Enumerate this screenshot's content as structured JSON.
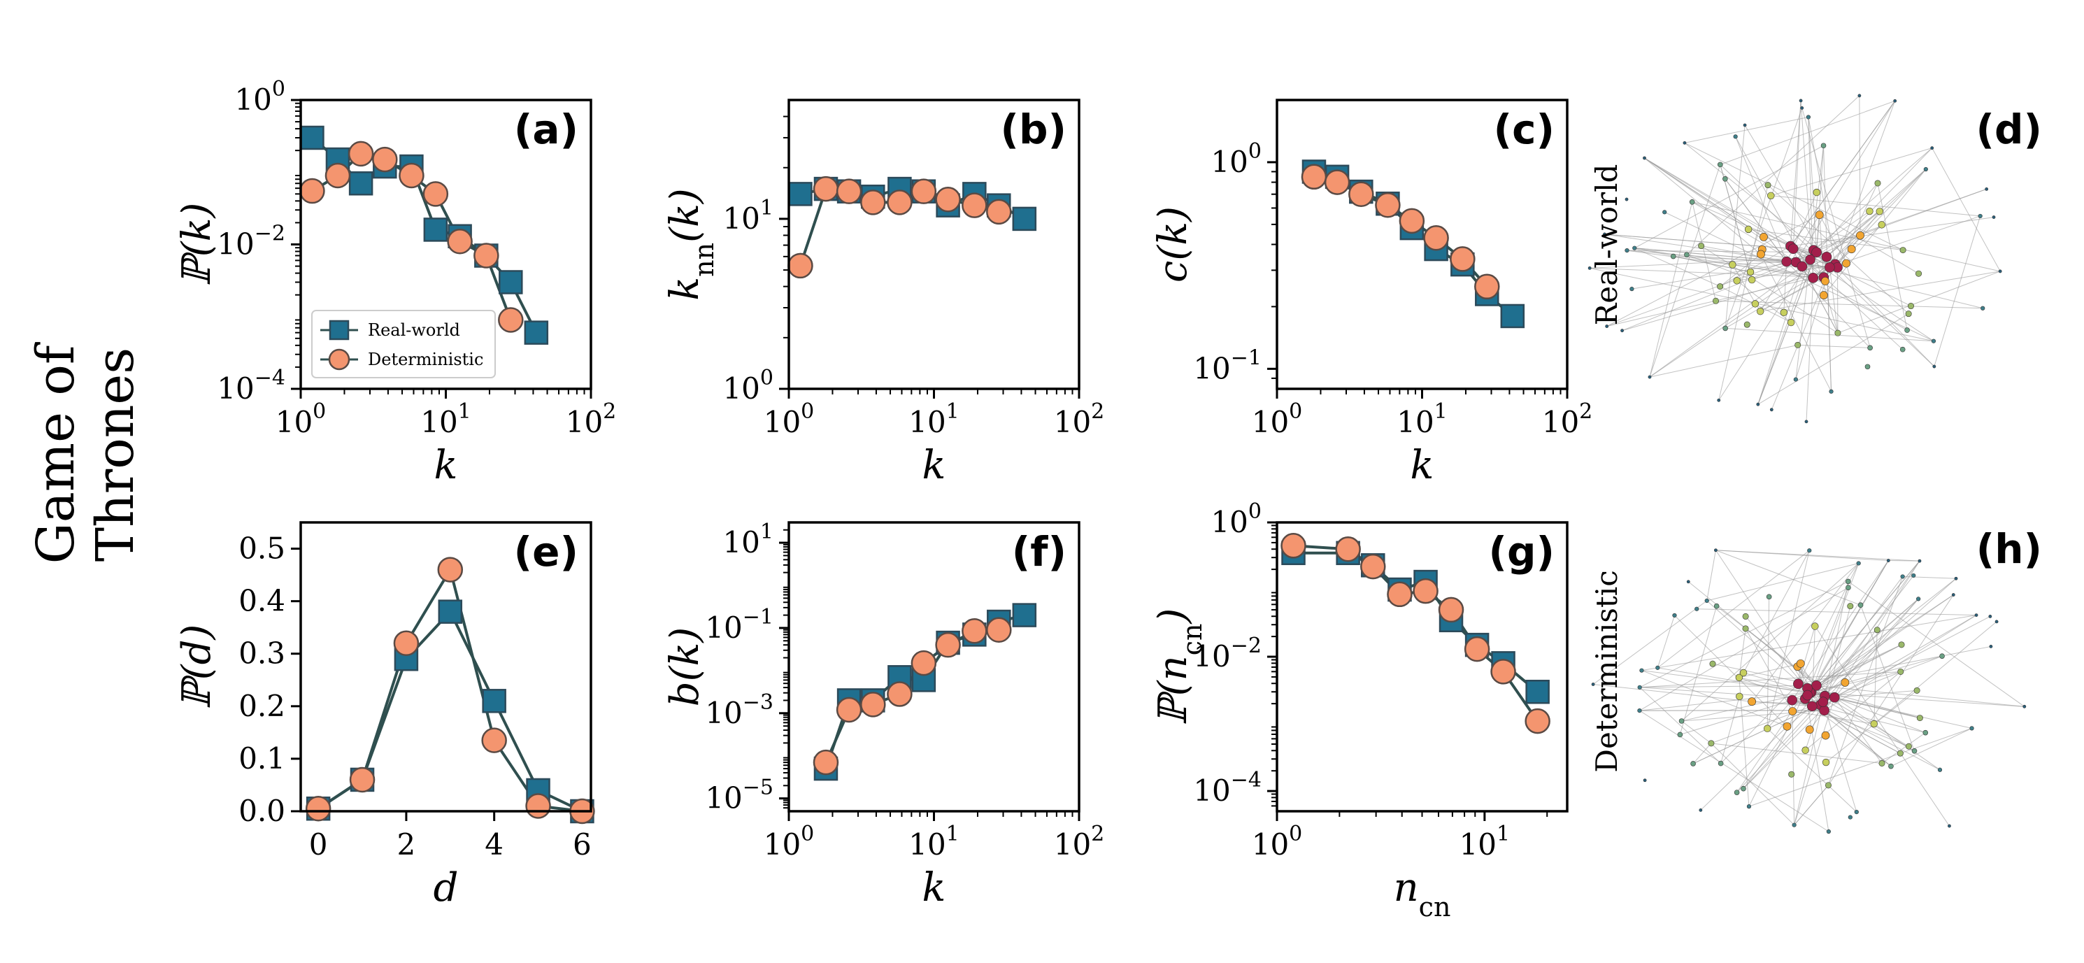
{
  "figure": {
    "row_label_line1": "Game of",
    "row_label_line2": "Thrones",
    "legend": {
      "real": "Real-world",
      "det": "Deterministic"
    },
    "colors": {
      "real": "#1f6f8f",
      "real_edge": "#2c4a5a",
      "det": "#f4956f",
      "det_edge": "#5a4a44",
      "line": "#2f4f4f"
    }
  },
  "chart_data": [
    {
      "id": "a",
      "type": "line",
      "panel_label": "(a)",
      "xscale": "log",
      "yscale": "log",
      "xlim": [
        1,
        100
      ],
      "ylim": [
        0.0001,
        1
      ],
      "xticks": [
        {
          "v": 1,
          "base": "10",
          "exp": "0"
        },
        {
          "v": 10,
          "base": "10",
          "exp": "1"
        },
        {
          "v": 100,
          "base": "10",
          "exp": "2"
        }
      ],
      "yticks": [
        {
          "v": 0.0001,
          "base": "10",
          "exp": "−4"
        },
        {
          "v": 0.01,
          "base": "10",
          "exp": "−2"
        },
        {
          "v": 1,
          "base": "10",
          "exp": "0"
        }
      ],
      "xlabel": "k",
      "ylabel": "ℙ(k)",
      "legend": true,
      "series": [
        {
          "name": "Real-world",
          "x": [
            1.2,
            1.8,
            2.6,
            3.8,
            5.8,
            8.5,
            12.5,
            19,
            28,
            42
          ],
          "y": [
            0.3,
            0.15,
            0.07,
            0.12,
            0.12,
            0.016,
            0.013,
            0.007,
            0.003,
            0.0006
          ]
        },
        {
          "name": "Deterministic",
          "x": [
            1.2,
            1.8,
            2.6,
            3.8,
            5.8,
            8.5,
            12.5,
            19,
            28
          ],
          "y": [
            0.055,
            0.09,
            0.18,
            0.15,
            0.09,
            0.05,
            0.011,
            0.007,
            0.0009
          ]
        }
      ]
    },
    {
      "id": "b",
      "type": "line",
      "panel_label": "(b)",
      "xscale": "log",
      "yscale": "log",
      "xlim": [
        1,
        100
      ],
      "ylim": [
        1,
        50
      ],
      "xticks": [
        {
          "v": 1,
          "base": "10",
          "exp": "0"
        },
        {
          "v": 10,
          "base": "10",
          "exp": "1"
        },
        {
          "v": 100,
          "base": "10",
          "exp": "2"
        }
      ],
      "yticks": [
        {
          "v": 1,
          "base": "10",
          "exp": "0"
        },
        {
          "v": 10,
          "base": "10",
          "exp": "1"
        }
      ],
      "xlabel": "k",
      "ylabel": "k_nn(k)",
      "series": [
        {
          "name": "Real-world",
          "x": [
            1.2,
            1.8,
            2.6,
            3.8,
            5.8,
            8.5,
            12.5,
            19,
            28,
            42
          ],
          "y": [
            14,
            15,
            14.5,
            13.5,
            15,
            14.5,
            12,
            14,
            12,
            10
          ]
        },
        {
          "name": "Deterministic",
          "x": [
            1.2,
            1.8,
            2.6,
            3.8,
            5.8,
            8.5,
            12.5,
            19,
            28
          ],
          "y": [
            5.3,
            15,
            14.5,
            12.5,
            12.5,
            14.5,
            13,
            12,
            11
          ]
        }
      ]
    },
    {
      "id": "c",
      "type": "line",
      "panel_label": "(c)",
      "xscale": "log",
      "yscale": "log",
      "xlim": [
        1,
        100
      ],
      "ylim": [
        0.08,
        2
      ],
      "xticks": [
        {
          "v": 1,
          "base": "10",
          "exp": "0"
        },
        {
          "v": 10,
          "base": "10",
          "exp": "1"
        },
        {
          "v": 100,
          "base": "10",
          "exp": "2"
        }
      ],
      "yticks": [
        {
          "v": 0.1,
          "base": "10",
          "exp": "−1"
        },
        {
          "v": 1,
          "base": "10",
          "exp": "0"
        }
      ],
      "xlabel": "k",
      "ylabel": "c(k)",
      "series": [
        {
          "name": "Real-world",
          "x": [
            1.8,
            2.6,
            3.8,
            5.8,
            8.5,
            12.5,
            19,
            28,
            42
          ],
          "y": [
            0.9,
            0.85,
            0.72,
            0.63,
            0.48,
            0.38,
            0.32,
            0.23,
            0.18
          ]
        },
        {
          "name": "Deterministic",
          "x": [
            1.8,
            2.6,
            3.8,
            5.8,
            8.5,
            12.5,
            19,
            28
          ],
          "y": [
            0.85,
            0.8,
            0.7,
            0.62,
            0.52,
            0.43,
            0.34,
            0.25
          ]
        }
      ]
    },
    {
      "id": "e",
      "type": "line",
      "panel_label": "(e)",
      "xscale": "linear",
      "yscale": "linear",
      "xlim": [
        -0.4,
        6.2
      ],
      "ylim": [
        0,
        0.55
      ],
      "xticks": [
        {
          "v": 0,
          "label": "0"
        },
        {
          "v": 2,
          "label": "2"
        },
        {
          "v": 4,
          "label": "4"
        },
        {
          "v": 6,
          "label": "6"
        }
      ],
      "yticks": [
        {
          "v": 0,
          "label": "0.0"
        },
        {
          "v": 0.1,
          "label": "0.1"
        },
        {
          "v": 0.2,
          "label": "0.2"
        },
        {
          "v": 0.3,
          "label": "0.3"
        },
        {
          "v": 0.4,
          "label": "0.4"
        },
        {
          "v": 0.5,
          "label": "0.5"
        }
      ],
      "xlabel": "d",
      "ylabel": "ℙ(d)",
      "series": [
        {
          "name": "Real-world",
          "x": [
            0,
            1,
            2,
            3,
            4,
            5,
            6
          ],
          "y": [
            0.005,
            0.06,
            0.29,
            0.38,
            0.21,
            0.04,
            0.0
          ]
        },
        {
          "name": "Deterministic",
          "x": [
            0,
            1,
            2,
            3,
            4,
            5,
            6
          ],
          "y": [
            0.005,
            0.06,
            0.32,
            0.46,
            0.135,
            0.01,
            0.0
          ]
        }
      ]
    },
    {
      "id": "f",
      "type": "line",
      "panel_label": "(f)",
      "xscale": "log",
      "yscale": "log",
      "xlim": [
        1,
        100
      ],
      "ylim": [
        5e-06,
        30
      ],
      "xticks": [
        {
          "v": 1,
          "base": "10",
          "exp": "0"
        },
        {
          "v": 10,
          "base": "10",
          "exp": "1"
        },
        {
          "v": 100,
          "base": "10",
          "exp": "2"
        }
      ],
      "yticks": [
        {
          "v": 1e-05,
          "base": "10",
          "exp": "−5"
        },
        {
          "v": 0.001,
          "base": "10",
          "exp": "−3"
        },
        {
          "v": 0.1,
          "base": "10",
          "exp": "−1"
        },
        {
          "v": 10,
          "base": "10",
          "exp": "1"
        }
      ],
      "xlabel": "k",
      "ylabel": "b(k)",
      "series": [
        {
          "name": "Real-world",
          "x": [
            1.8,
            2.6,
            3.8,
            5.8,
            8.5,
            12.5,
            19,
            28,
            42
          ],
          "y": [
            5e-05,
            0.002,
            0.002,
            0.007,
            0.006,
            0.045,
            0.07,
            0.14,
            0.2
          ]
        },
        {
          "name": "Deterministic",
          "x": [
            1.8,
            2.6,
            3.8,
            5.8,
            8.5,
            12.5,
            19,
            28
          ],
          "y": [
            7e-05,
            0.0012,
            0.0016,
            0.0028,
            0.015,
            0.04,
            0.085,
            0.09
          ]
        }
      ]
    },
    {
      "id": "g",
      "type": "line",
      "panel_label": "(g)",
      "xscale": "log",
      "yscale": "log",
      "xlim": [
        1,
        25
      ],
      "ylim": [
        5e-05,
        1
      ],
      "xticks": [
        {
          "v": 1,
          "base": "10",
          "exp": "0"
        },
        {
          "v": 10,
          "base": "10",
          "exp": "1"
        }
      ],
      "yticks": [
        {
          "v": 0.0001,
          "base": "10",
          "exp": "−4"
        },
        {
          "v": 0.01,
          "base": "10",
          "exp": "−2"
        },
        {
          "v": 1,
          "base": "10",
          "exp": "0"
        }
      ],
      "xlabel": "n_cn",
      "ylabel": "ℙ(n_cn)",
      "series": [
        {
          "name": "Real-world",
          "x": [
            1.2,
            2.2,
            2.9,
            3.9,
            5.2,
            6.9,
            9.2,
            12.3,
            18
          ],
          "y": [
            0.35,
            0.35,
            0.23,
            0.1,
            0.13,
            0.035,
            0.015,
            0.008,
            0.003
          ]
        },
        {
          "name": "Deterministic",
          "x": [
            1.2,
            2.2,
            2.9,
            3.9,
            5.2,
            6.9,
            9.2,
            12.3,
            18
          ],
          "y": [
            0.45,
            0.4,
            0.22,
            0.085,
            0.095,
            0.05,
            0.013,
            0.006,
            0.0011
          ]
        }
      ]
    }
  ],
  "network_panels": [
    {
      "id": "d",
      "panel_label": "(d)",
      "side_label": "Real-world"
    },
    {
      "id": "h",
      "panel_label": "(h)",
      "side_label": "Deterministic"
    }
  ]
}
